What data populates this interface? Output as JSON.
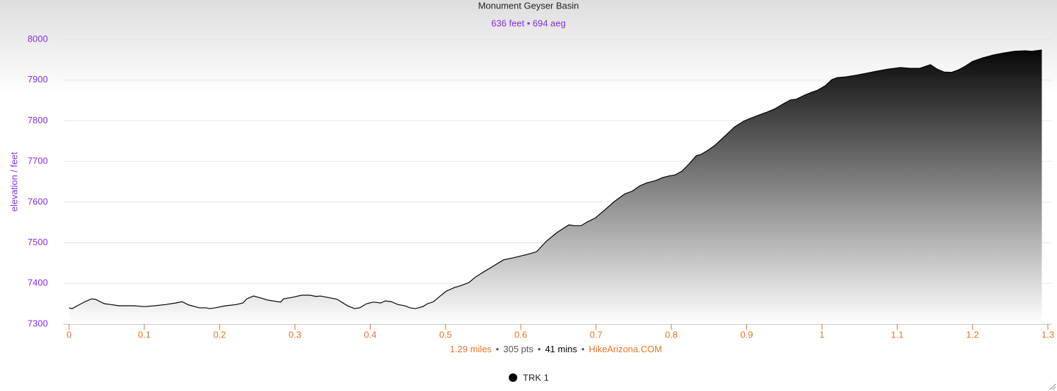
{
  "chart_data": {
    "type": "area",
    "title": "Monument Geyser Basin",
    "subtitle": "636 feet • 694 aeg",
    "y_label": "elevation / feet",
    "footer": [
      {
        "text": "1.29 miles",
        "color": "#e8742a"
      },
      {
        "text": "305 pts",
        "color": "#555555"
      },
      {
        "text": "41 mins",
        "color": "#000000"
      },
      {
        "text": "HikeArizona.COM",
        "color": "#e8742a"
      }
    ],
    "footer_separator": "•",
    "x": [
      0,
      0.004,
      0.011,
      0.021,
      0.03,
      0.035,
      0.047,
      0.056,
      0.066,
      0.086,
      0.1,
      0.114,
      0.128,
      0.142,
      0.15,
      0.159,
      0.173,
      0.182,
      0.187,
      0.194,
      0.208,
      0.222,
      0.231,
      0.236,
      0.245,
      0.255,
      0.264,
      0.281,
      0.285,
      0.297,
      0.309,
      0.32,
      0.328,
      0.334,
      0.348,
      0.356,
      0.362,
      0.37,
      0.379,
      0.386,
      0.395,
      0.404,
      0.414,
      0.42,
      0.428,
      0.437,
      0.446,
      0.453,
      0.46,
      0.47,
      0.476,
      0.484,
      0.493,
      0.501,
      0.512,
      0.521,
      0.531,
      0.54,
      0.554,
      0.563,
      0.577,
      0.59,
      0.601,
      0.608,
      0.621,
      0.634,
      0.648,
      0.657,
      0.664,
      0.671,
      0.68,
      0.688,
      0.699,
      0.711,
      0.724,
      0.738,
      0.748,
      0.758,
      0.767,
      0.779,
      0.788,
      0.796,
      0.805,
      0.814,
      0.824,
      0.833,
      0.839,
      0.849,
      0.858,
      0.872,
      0.884,
      0.896,
      0.905,
      0.919,
      0.928,
      0.938,
      0.949,
      0.958,
      0.966,
      0.977,
      0.986,
      0.994,
      1.005,
      1.013,
      1.02,
      1.032,
      1.045,
      1.059,
      1.073,
      1.088,
      1.104,
      1.117,
      1.13,
      1.144,
      1.153,
      1.162,
      1.172,
      1.181,
      1.19,
      1.2,
      1.214,
      1.228,
      1.242,
      1.256,
      1.27,
      1.279,
      1.292
    ],
    "series": [
      {
        "name": "TRK 1",
        "color": "#000000",
        "values": [
          7340,
          7338,
          7345,
          7355,
          7362,
          7361,
          7350,
          7348,
          7345,
          7345,
          7343,
          7345,
          7348,
          7352,
          7355,
          7347,
          7340,
          7340,
          7338,
          7340,
          7345,
          7348,
          7352,
          7362,
          7369,
          7364,
          7359,
          7354,
          7362,
          7366,
          7371,
          7371,
          7368,
          7369,
          7364,
          7361,
          7354,
          7345,
          7338,
          7340,
          7350,
          7354,
          7352,
          7357,
          7355,
          7348,
          7345,
          7340,
          7338,
          7343,
          7350,
          7355,
          7369,
          7381,
          7390,
          7395,
          7402,
          7416,
          7432,
          7442,
          7458,
          7463,
          7468,
          7471,
          7478,
          7504,
          7525,
          7536,
          7544,
          7542,
          7542,
          7551,
          7561,
          7580,
          7601,
          7620,
          7627,
          7640,
          7647,
          7653,
          7660,
          7664,
          7667,
          7676,
          7695,
          7714,
          7717,
          7728,
          7740,
          7764,
          7785,
          7799,
          7806,
          7816,
          7822,
          7830,
          7842,
          7851,
          7853,
          7863,
          7870,
          7875,
          7887,
          7901,
          7906,
          7908,
          7912,
          7917,
          7922,
          7927,
          7931,
          7929,
          7929,
          7938,
          7927,
          7920,
          7919,
          7925,
          7934,
          7946,
          7955,
          7962,
          7967,
          7971,
          7972,
          7971,
          7974
        ]
      }
    ],
    "xlim": [
      0,
      1.3
    ],
    "xticks": [
      0,
      0.1,
      0.2,
      0.3,
      0.4,
      0.5,
      0.6,
      0.7,
      0.8,
      0.9,
      1,
      1.1,
      1.2,
      1.3
    ],
    "ylim": [
      7300,
      8000
    ],
    "yticks": [
      7300,
      7400,
      7500,
      7600,
      7700,
      7800,
      7900,
      8000
    ],
    "grid": true,
    "x_tick_color": "#e8742a",
    "y_tick_color": "#8a2be2"
  }
}
